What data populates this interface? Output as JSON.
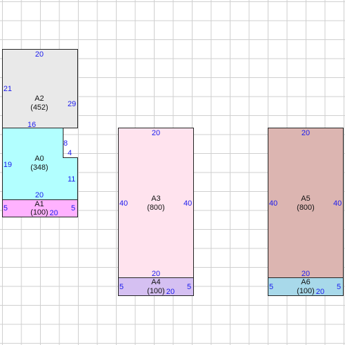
{
  "rooms": [
    {
      "id": "A0",
      "area": "(348)",
      "color": "#b2ffff"
    },
    {
      "id": "A1",
      "area": "(100)",
      "color": "#ffb2ff"
    },
    {
      "id": "A2",
      "area": "(452)",
      "color": "#e9e9e9"
    },
    {
      "id": "A3",
      "area": "(800)",
      "color": "#ffe3ee"
    },
    {
      "id": "A4",
      "area": "(100)",
      "color": "#d5c0f2"
    },
    {
      "id": "A5",
      "area": "(800)",
      "color": "#dcb5b1"
    },
    {
      "id": "A6",
      "area": "(100)",
      "color": "#a8d9ea"
    }
  ],
  "dimensions": {
    "a2_top": "20",
    "a2_left": "21",
    "a2_right": "29",
    "a0_top": "16",
    "a0_notch_vertical": "8",
    "a0_notch_horizontal": "4",
    "a0_left": "19",
    "a0_right": "11",
    "a0_bottom": "20",
    "a1_left": "5",
    "a1_right": "5",
    "a1_bottom": "20",
    "a3_top": "20",
    "a3_left": "40",
    "a3_right": "40",
    "a3_bottom": "20",
    "a4_left": "5",
    "a4_right": "5",
    "a4_bottom": "20",
    "a5_top": "20",
    "a5_left": "40",
    "a5_right": "40",
    "a5_bottom": "20",
    "a6_left": "5",
    "a6_right": "5",
    "a6_bottom": "20"
  },
  "colors": {
    "outline": "#222222",
    "dimension_text": "#1a1aee",
    "grid": "#cfcfcf"
  }
}
